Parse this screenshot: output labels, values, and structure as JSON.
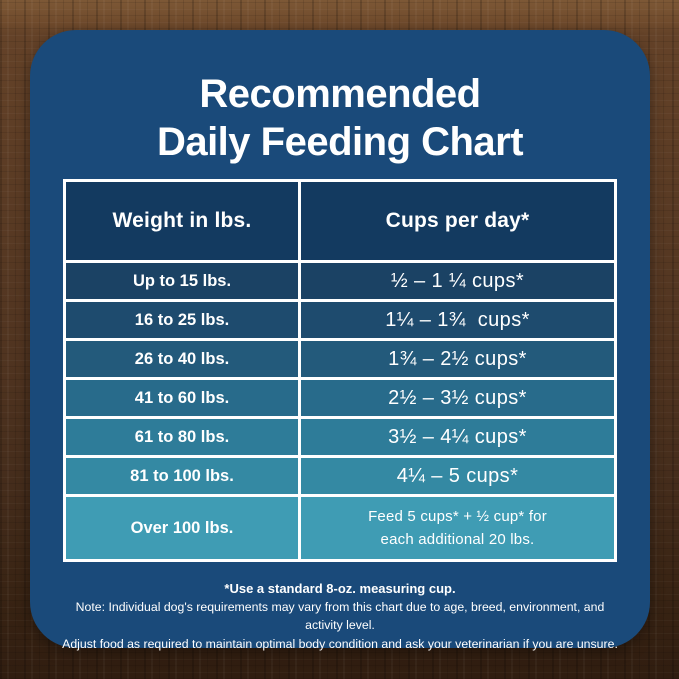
{
  "title": {
    "line1": "Recommended",
    "line2": "Daily Feeding Chart"
  },
  "colors": {
    "card_bg": "#1a4a7a",
    "header_bg": "#133a60",
    "table_border": "#ffffff",
    "text": "#ffffff",
    "wood_top": "#7d5836",
    "wood_bottom": "#301d10"
  },
  "table": {
    "headers": [
      "Weight in lbs.",
      "Cups per day*"
    ],
    "row_colors": [
      "#1b4264",
      "#1e4b6e",
      "#235a7b",
      "#286b8b",
      "#2e7c99",
      "#3489a3",
      "#3f9cb4"
    ],
    "rows": [
      {
        "weight": "Up to 15 lbs.",
        "cups": "½ – 1 ¼ cups*"
      },
      {
        "weight": "16 to 25 lbs.",
        "cups": "1¼ – 1¾  cups*"
      },
      {
        "weight": "26 to 40 lbs.",
        "cups": "1¾ – 2½ cups*"
      },
      {
        "weight": "41 to 60 lbs.",
        "cups": "2½ – 3½ cups*"
      },
      {
        "weight": "61 to 80 lbs.",
        "cups": "3½ – 4¼ cups*"
      },
      {
        "weight": "81 to 100 lbs.",
        "cups": "4¼ – 5 cups*"
      },
      {
        "weight": "Over 100 lbs.",
        "cups": "Feed 5 cups* + ½ cup* for\neach additional 20 lbs."
      }
    ]
  },
  "notes": {
    "measuring_cup": "*Use a standard 8-oz. measuring cup.",
    "disclaimer1": "Note: Individual dog's requirements may vary from this chart due to age, breed, environment, and activity level.",
    "disclaimer2": "Adjust food as required to maintain optimal body condition and ask your veterinarian if you are unsure."
  },
  "chart_data": {
    "type": "table",
    "title": "Recommended Daily Feeding Chart",
    "columns": [
      "Weight in lbs.",
      "Cups per day*"
    ],
    "rows": [
      [
        "Up to 15 lbs.",
        "½ – 1 ¼ cups*"
      ],
      [
        "16 to 25 lbs.",
        "1¼ – 1¾ cups*"
      ],
      [
        "26 to 40 lbs.",
        "1¾ – 2½ cups*"
      ],
      [
        "41 to 60 lbs.",
        "2½ – 3½ cups*"
      ],
      [
        "61 to 80 lbs.",
        "3½ – 4¼ cups*"
      ],
      [
        "81 to 100 lbs.",
        "4¼ – 5 cups*"
      ],
      [
        "Over 100 lbs.",
        "Feed 5 cups* + ½ cup* for each additional 20 lbs."
      ]
    ],
    "footnote": "*Use a standard 8-oz. measuring cup."
  }
}
